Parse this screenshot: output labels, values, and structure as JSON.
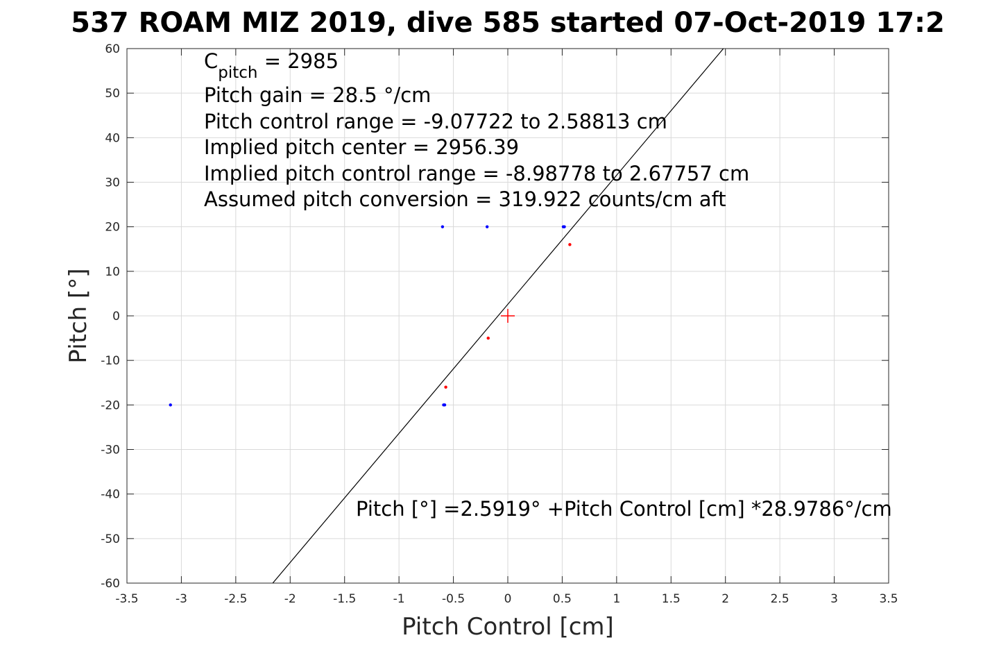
{
  "chart_data": {
    "type": "scatter",
    "title": "537 ROAM MIZ 2019, dive 585 started 07-Oct-2019 17:2",
    "xlabel": "Pitch Control [cm]",
    "ylabel": "Pitch [°]",
    "xlim": [
      -3.5,
      3.5
    ],
    "ylim": [
      -60,
      60
    ],
    "grid": true,
    "x_ticks": [
      -3.5,
      -3,
      -2.5,
      -2,
      -1.5,
      -1,
      -0.5,
      0,
      0.5,
      1,
      1.5,
      2,
      2.5,
      3,
      3.5
    ],
    "x_tick_labels": [
      "-3.5",
      "-3",
      "-2.5",
      "-2",
      "-1.5",
      "-1",
      "-0.5",
      "0",
      "0.5",
      "1",
      "1.5",
      "2",
      "2.5",
      "3",
      "3.5"
    ],
    "y_ticks": [
      60,
      50,
      40,
      30,
      20,
      10,
      0,
      -10,
      -20,
      -30,
      -40,
      -50,
      -60
    ],
    "y_tick_labels": [
      "60",
      "50",
      "40",
      "30",
      "20",
      "10",
      "0",
      "-10",
      "-20",
      "-30",
      "-40",
      "-50",
      "-60"
    ],
    "series": [
      {
        "color": "#0000ff",
        "points": [
          {
            "x": -0.6,
            "y": 20
          },
          {
            "x": -0.19,
            "y": 20
          },
          {
            "x": 0.51,
            "y": 20
          },
          {
            "x": 0.52,
            "y": 20
          },
          {
            "x": -3.1,
            "y": -20
          },
          {
            "x": -0.59,
            "y": -20
          },
          {
            "x": -0.58,
            "y": -20
          }
        ]
      },
      {
        "color": "#ff0000",
        "points": [
          {
            "x": 0.57,
            "y": 16
          },
          {
            "x": -0.18,
            "y": -5
          },
          {
            "x": -0.57,
            "y": -16
          }
        ]
      }
    ],
    "center_marker": {
      "x": 0,
      "y": 0,
      "color": "#ff0000"
    },
    "fit_line": {
      "intercept": 2.5919,
      "slope": 28.9786,
      "color": "#000000"
    },
    "annotations": {
      "c_pitch_main": "C",
      "c_pitch_sub": "pitch",
      "c_pitch_rest": " = 2985",
      "pitch_gain": "Pitch gain = 28.5 °/cm",
      "pitch_control_range": "Pitch control range = -9.07722 to 2.58813 cm",
      "implied_center": "Implied pitch center = 2956.39",
      "implied_range": "Implied pitch control range = -8.98778 to 2.67757 cm",
      "assumed_conversion": "Assumed pitch conversion = 319.922 counts/cm aft",
      "fit_equation": "Pitch [°] =2.5919° +Pitch Control [cm] *28.9786°/cm"
    }
  }
}
